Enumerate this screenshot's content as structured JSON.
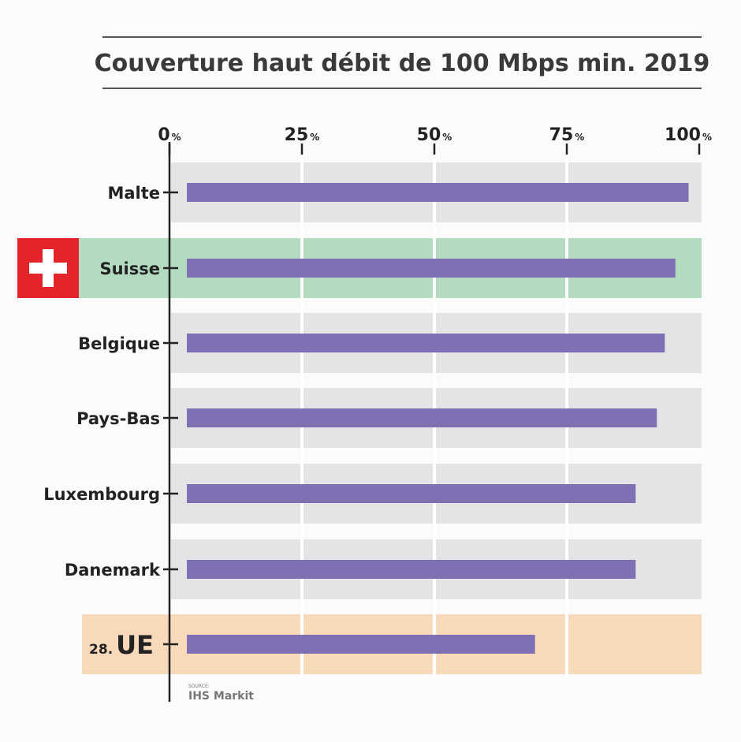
{
  "chart_data": {
    "type": "bar",
    "orientation": "horizontal",
    "title": "Couverture haut débit de 100 Mbps min. 2019",
    "xlim": [
      0,
      100
    ],
    "x_ticks": [
      {
        "value": 0,
        "label": "0",
        "unit": "%"
      },
      {
        "value": 25,
        "label": "25",
        "unit": "%"
      },
      {
        "value": 50,
        "label": "50",
        "unit": "%"
      },
      {
        "value": 75,
        "label": "75",
        "unit": "%"
      },
      {
        "value": 100,
        "label": "100",
        "unit": "%"
      }
    ],
    "categories": [
      "Malte",
      "Suisse",
      "Belgique",
      "Pays-Bas",
      "Luxembourg",
      "Danemark",
      "UE"
    ],
    "values": [
      98,
      95.5,
      93.5,
      92,
      88,
      88,
      69
    ],
    "highlights": {
      "Suisse": {
        "band": "#b2dbc0",
        "flag": "swiss-flag"
      },
      "UE": {
        "band": "#f8d9ba",
        "prefix": "28."
      }
    },
    "grid": true,
    "source_label": "SOURCE:",
    "source": "IHS Markit"
  },
  "colors": {
    "bar": "#7e70b2",
    "band": "#e4e3e6",
    "band_suisse": "#b2dbc0",
    "band_ue": "#f8d9ba",
    "flag_red": "#e3242b",
    "axis": "#222222",
    "rule": "#555555"
  }
}
